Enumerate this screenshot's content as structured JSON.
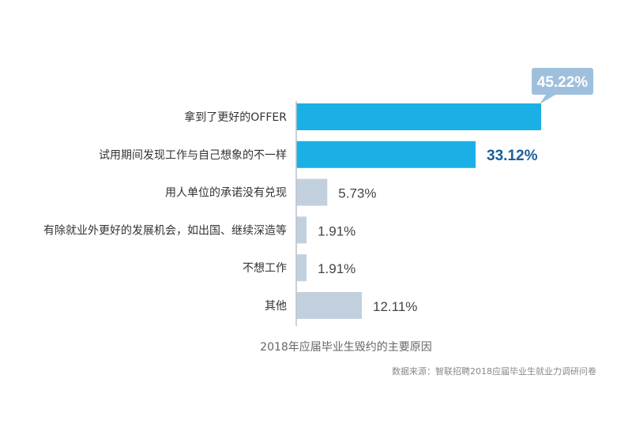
{
  "chart_data": {
    "type": "bar",
    "orientation": "horizontal",
    "categories": [
      "拿到了更好的OFFER",
      "试用期间发现工作与自己想象的不一样",
      "用人单位的承诺没有兑现",
      "有除就业外更好的发展机会，如出国、继续深造等",
      "不想工作",
      "其他"
    ],
    "values": [
      45.22,
      33.12,
      5.73,
      1.91,
      1.91,
      12.11
    ],
    "value_labels": [
      "45.22%",
      "33.12%",
      "5.73%",
      "1.91%",
      "1.91%",
      "12.11%"
    ],
    "unit": "%",
    "xlim": [
      0,
      45.22
    ],
    "highlight_count": 2,
    "grid": false,
    "legend": "none",
    "title": "2018年应届毕业生毁约的主要原因",
    "source": "数据来源：智联招聘2018应届毕业生就业力调研问卷",
    "colors": {
      "highlight_bar": "#1ab0e6",
      "normal_bar": "#c2d0de",
      "axis": "#b8c2cc",
      "callout_bg": "#9fc0dc",
      "highlight_value_text": "#1b5f9a",
      "normal_value_text": "#444444"
    }
  }
}
